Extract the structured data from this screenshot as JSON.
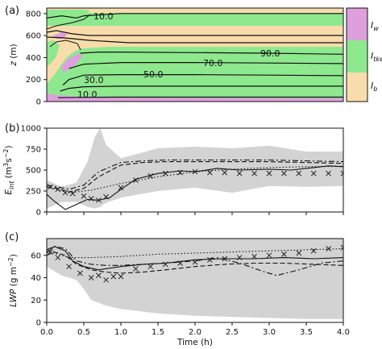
{
  "chart_data": [
    {
      "id": "a",
      "panel_label": "(a)",
      "type": "heatmap",
      "xlim": [
        0,
        4
      ],
      "ylim": [
        0,
        850
      ],
      "ylabel": "z (m)",
      "yticks": [
        0,
        200,
        400,
        600,
        800
      ],
      "colorbar": {
        "categories": [
          "I_w",
          "I_tke",
          "I_b"
        ],
        "labels": [
          {
            "base": "I",
            "sub": "w"
          },
          {
            "base": "I",
            "sub": "tke"
          },
          {
            "base": "I",
            "sub": "b"
          }
        ],
        "colors": [
          "#dda0dd",
          "#8ee88e",
          "#f9dcac"
        ]
      },
      "contour_labels": [
        "10.0",
        "30.0",
        "50.0",
        "70.0",
        "90.0",
        "10.0"
      ],
      "contour_label_values": [
        10,
        30,
        50,
        70,
        90,
        10
      ],
      "contours": [
        {
          "level": 10,
          "x": [
            0.15,
            0.5,
            1.0,
            2.0,
            3.0,
            4.0
          ],
          "y": [
            35,
            38,
            40,
            40,
            40,
            40
          ]
        },
        {
          "level": 30,
          "x": [
            0.18,
            0.3,
            0.5,
            1.0,
            2.0,
            3.0,
            4.0
          ],
          "y": [
            95,
            120,
            135,
            140,
            140,
            140,
            140
          ]
        },
        {
          "level": 50,
          "x": [
            0.22,
            0.3,
            0.5,
            1.0,
            2.0,
            3.0,
            4.0
          ],
          "y": [
            150,
            200,
            240,
            245,
            245,
            240,
            235
          ]
        },
        {
          "level": 70,
          "x": [
            0.3,
            0.5,
            1.0,
            2.0,
            3.0,
            4.0
          ],
          "y": [
            300,
            340,
            355,
            355,
            350,
            345
          ]
        },
        {
          "level": 90,
          "x": [
            0.45,
            0.7,
            1.0,
            2.0,
            3.0,
            4.0
          ],
          "y": [
            440,
            450,
            450,
            445,
            440,
            430
          ]
        },
        {
          "level": 10,
          "x": [
            0.0,
            0.2,
            0.4,
            0.5,
            1.0,
            2.0,
            3.0,
            4.0
          ],
          "y": [
            760,
            780,
            760,
            780,
            800,
            800,
            800,
            800
          ]
        }
      ]
    },
    {
      "id": "b",
      "panel_label": "(b)",
      "type": "line",
      "xlim": [
        0,
        4
      ],
      "ylim": [
        0,
        1000
      ],
      "ylabel": "E_int (m^3 s^-2)",
      "ylabel_parts": {
        "base": "E",
        "sub": "int",
        "units": " (m",
        "sup1": "3",
        "mid": "s",
        "sup2": "−2",
        "end": ")"
      },
      "yticks": [
        0,
        250,
        500,
        750,
        1000
      ],
      "band": {
        "x": [
          0,
          0.2,
          0.4,
          0.55,
          0.65,
          0.72,
          0.8,
          1.0,
          1.5,
          2.0,
          2.5,
          3.0,
          3.5,
          4.0
        ],
        "lower": [
          40,
          120,
          120,
          60,
          40,
          60,
          110,
          170,
          250,
          290,
          230,
          310,
          300,
          310
        ],
        "upper": [
          380,
          300,
          350,
          600,
          900,
          1000,
          800,
          640,
          760,
          780,
          760,
          790,
          720,
          720
        ]
      },
      "series": [
        {
          "style": "solid",
          "x": [
            0,
            0.1,
            0.25,
            0.4,
            0.55,
            0.7,
            0.85,
            1.0,
            1.2,
            1.5,
            1.8,
            2.0,
            2.3,
            2.6,
            3.0,
            3.3,
            3.6,
            3.8,
            4.0
          ],
          "y": [
            210,
            130,
            30,
            90,
            150,
            140,
            170,
            270,
            390,
            460,
            490,
            480,
            520,
            500,
            510,
            500,
            530,
            550,
            540
          ]
        },
        {
          "style": "dashed",
          "x": [
            0,
            0.15,
            0.3,
            0.5,
            0.7,
            1.0,
            1.3,
            1.6,
            2.0,
            2.5,
            3.0,
            3.5,
            4.0
          ],
          "y": [
            300,
            280,
            240,
            280,
            420,
            560,
            590,
            600,
            600,
            600,
            600,
            590,
            580
          ]
        },
        {
          "style": "dashdot",
          "x": [
            0,
            0.15,
            0.3,
            0.5,
            0.7,
            1.0,
            1.3,
            1.6,
            2.0,
            2.5,
            3.0,
            3.5,
            4.0
          ],
          "y": [
            320,
            300,
            270,
            320,
            480,
            590,
            610,
            620,
            620,
            620,
            620,
            610,
            600
          ]
        },
        {
          "style": "dotted",
          "x": [
            0,
            0.3,
            0.6,
            1.0,
            1.5,
            2.0,
            2.5,
            3.0,
            3.5,
            4.0
          ],
          "y": [
            300,
            230,
            260,
            340,
            420,
            480,
            510,
            530,
            540,
            545
          ]
        },
        {
          "style": "markers",
          "marker": "x",
          "x": [
            0.05,
            0.15,
            0.25,
            0.35,
            0.5,
            0.6,
            0.7,
            0.8,
            1.0,
            1.2,
            1.4,
            1.6,
            1.8,
            2.0,
            2.2,
            2.4,
            2.6,
            2.8,
            3.0,
            3.2,
            3.4,
            3.6,
            3.8,
            4.0
          ],
          "y": [
            300,
            270,
            230,
            220,
            190,
            160,
            140,
            180,
            290,
            380,
            430,
            460,
            470,
            480,
            470,
            470,
            460,
            460,
            460,
            460,
            460,
            460,
            460,
            460
          ]
        }
      ]
    },
    {
      "id": "c",
      "panel_label": "(c)",
      "type": "line",
      "xlim": [
        0,
        4
      ],
      "ylim": [
        0,
        75
      ],
      "xlabel": "Time (h)",
      "ylabel": "LWP (g m^-2)",
      "ylabel_parts": {
        "base": "LWP",
        "units": " (g m",
        "sup": "−2",
        "end": ")"
      },
      "xticks": [
        0,
        0.5,
        1,
        1.5,
        2,
        2.5,
        3,
        3.5,
        4
      ],
      "xticklabels": [
        "0.0",
        "0.5",
        "1.0",
        "1.5",
        "2.0",
        "2.5",
        "3.0",
        "3.5",
        "4.0"
      ],
      "yticks": [
        0,
        20,
        40,
        60
      ],
      "band": {
        "x": [
          0,
          0.2,
          0.4,
          0.5,
          0.6,
          0.8,
          1.0,
          1.5,
          2.0,
          2.5,
          3.0,
          3.5,
          4.0
        ],
        "lower": [
          50,
          42,
          38,
          30,
          20,
          15,
          12,
          8,
          6,
          5,
          4,
          3,
          3
        ],
        "upper": [
          75,
          75,
          75,
          75,
          75,
          75,
          75,
          75,
          75,
          75,
          75,
          75,
          75
        ]
      },
      "series": [
        {
          "style": "solid",
          "x": [
            0,
            0.1,
            0.25,
            0.35,
            0.5,
            0.7,
            1.0,
            1.3,
            1.6,
            2.0,
            2.4,
            2.8,
            3.2,
            3.6,
            4.0
          ],
          "y": [
            62,
            68,
            64,
            55,
            50,
            47,
            50,
            52,
            53,
            56,
            57,
            57,
            58,
            57,
            58
          ]
        },
        {
          "style": "dashed",
          "x": [
            0,
            0.1,
            0.25,
            0.4,
            0.6,
            0.8,
            1.0,
            1.3,
            1.6,
            2.0,
            2.4,
            2.8,
            3.2,
            3.6,
            4.0
          ],
          "y": [
            60,
            63,
            60,
            52,
            47,
            45,
            44,
            45,
            47,
            50,
            52,
            53,
            53,
            52,
            51
          ]
        },
        {
          "style": "dashdot",
          "x": [
            0,
            0.1,
            0.25,
            0.4,
            0.6,
            0.8,
            1.0,
            1.3,
            1.6,
            2.0,
            2.3,
            2.6,
            2.9,
            3.1,
            3.4,
            3.7,
            4.0
          ],
          "y": [
            65,
            68,
            66,
            55,
            52,
            51,
            51,
            52,
            53,
            55,
            58,
            53,
            46,
            42,
            47,
            53,
            55
          ]
        },
        {
          "style": "dotted",
          "x": [
            0,
            0.3,
            0.6,
            1.0,
            1.5,
            2.0,
            2.5,
            3.0,
            3.5,
            4.0
          ],
          "y": [
            64,
            58,
            58,
            59,
            61,
            62,
            63,
            64,
            65,
            66
          ]
        },
        {
          "style": "markers",
          "marker": "x",
          "x": [
            0.05,
            0.15,
            0.3,
            0.45,
            0.6,
            0.7,
            0.8,
            0.9,
            1.0,
            1.2,
            1.4,
            1.6,
            1.8,
            2.0,
            2.2,
            2.4,
            2.6,
            2.8,
            3.0,
            3.2,
            3.4,
            3.6,
            3.8,
            4.0
          ],
          "y": [
            63,
            58,
            50,
            44,
            40,
            42,
            38,
            41,
            41,
            48,
            50,
            52,
            53,
            54,
            56,
            57,
            58,
            59,
            60,
            61,
            62,
            64,
            66,
            67
          ]
        }
      ]
    }
  ]
}
